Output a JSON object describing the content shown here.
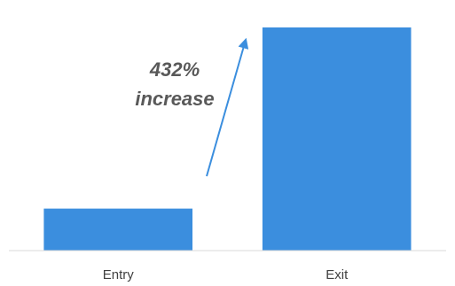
{
  "chart_data": {
    "type": "bar",
    "categories": [
      "Entry",
      "Exit"
    ],
    "values": [
      1,
      5.32
    ],
    "ylim": [
      0,
      5.32
    ],
    "grid": false,
    "bar_color": "#3b8ede",
    "axis_color": "#d9d9d9",
    "arrow_color": "#3b8ede",
    "annotation": {
      "line1": "432%",
      "line2": "increase"
    }
  }
}
